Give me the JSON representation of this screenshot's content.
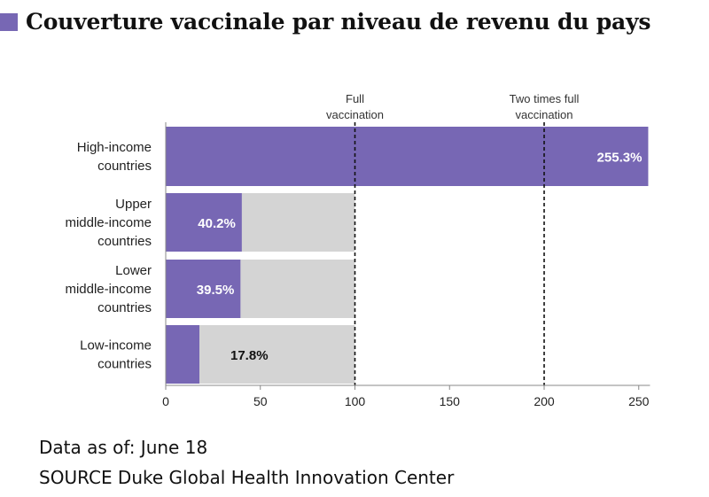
{
  "title": "Couverture vaccinale par niveau de revenu du pays",
  "footer": {
    "date": "Data as of: June 18",
    "source": "SOURCE Duke Global Health Innovation Center"
  },
  "colors": {
    "bar": "#7767b4",
    "background_bar": "#d4d4d4",
    "title_swatch": "#7767b4"
  },
  "chart_data": {
    "type": "bar",
    "orientation": "horizontal",
    "categories": [
      [
        "High-income",
        "countries"
      ],
      [
        "Upper",
        "middle-income",
        "countries"
      ],
      [
        "Lower",
        "middle-income",
        "countries"
      ],
      [
        "Low-income",
        "countries"
      ]
    ],
    "values": [
      255.3,
      40.2,
      39.5,
      17.8
    ],
    "value_labels": [
      "255.3%",
      "40.2%",
      "39.5%",
      "17.8%"
    ],
    "background_bar_value": 100,
    "xlim": [
      0,
      255
    ],
    "xticks": [
      0,
      50,
      100,
      150,
      200,
      250
    ],
    "reference_lines": [
      {
        "value": 100,
        "label": [
          "Full",
          "vaccination"
        ]
      },
      {
        "value": 200,
        "label": [
          "Two times full",
          "vaccination"
        ]
      }
    ],
    "grid": false,
    "legend": "none"
  }
}
